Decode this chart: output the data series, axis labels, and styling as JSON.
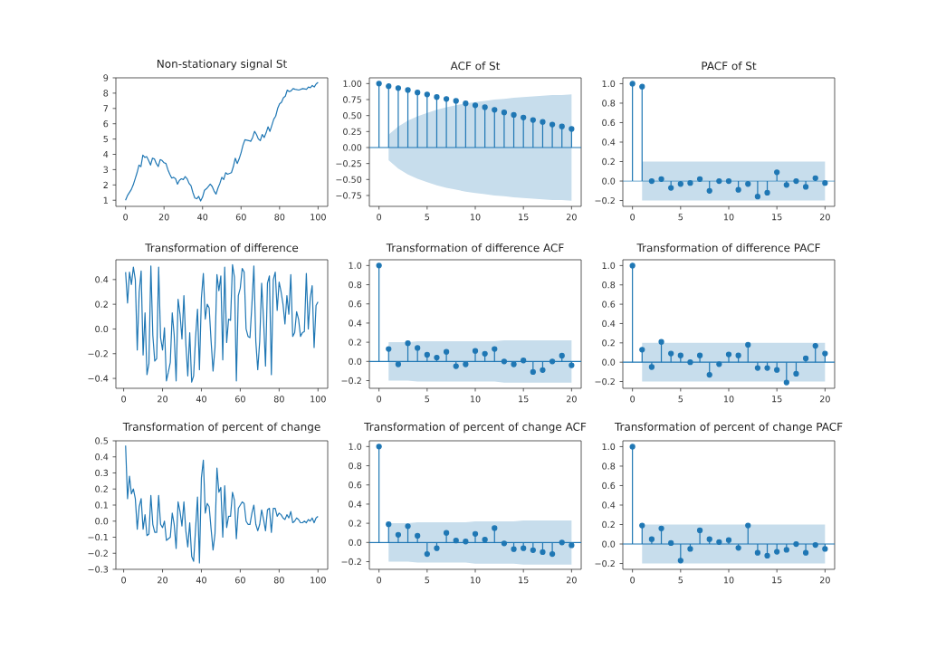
{
  "chart_data": [
    {
      "type": "line",
      "title": "Non-stationary signal St",
      "color": "#1f77b4",
      "x": [
        0,
        1,
        2,
        3,
        4,
        5,
        6,
        7,
        8,
        9,
        10,
        11,
        12,
        13,
        14,
        15,
        16,
        17,
        18,
        19,
        20,
        21,
        22,
        23,
        24,
        25,
        26,
        27,
        28,
        29,
        30,
        31,
        32,
        33,
        34,
        35,
        36,
        37,
        38,
        39,
        40,
        41,
        42,
        43,
        44,
        45,
        46,
        47,
        48,
        49,
        50,
        51,
        52,
        53,
        55,
        56,
        57,
        58,
        59,
        60,
        61,
        62,
        64,
        65,
        66,
        67,
        68,
        69,
        70,
        71,
        72,
        73,
        74,
        75,
        76,
        77,
        78,
        79,
        80,
        81,
        82,
        83,
        84,
        85,
        86,
        87,
        88,
        90,
        92,
        94,
        95,
        96,
        97,
        98,
        99,
        100
      ],
      "values": [
        1.0,
        1.3,
        1.5,
        1.7,
        2.0,
        2.4,
        2.8,
        3.3,
        3.2,
        3.95,
        3.8,
        3.85,
        3.6,
        3.3,
        3.75,
        3.7,
        3.4,
        3.2,
        3.65,
        3.6,
        3.45,
        3.4,
        3.0,
        2.7,
        2.45,
        2.5,
        2.4,
        2.05,
        2.3,
        2.4,
        2.35,
        2.55,
        2.4,
        2.1,
        1.95,
        1.5,
        1.15,
        1.1,
        1.25,
        0.95,
        1.2,
        1.65,
        1.75,
        1.9,
        2.05,
        1.9,
        1.6,
        1.4,
        1.8,
        2.1,
        2.5,
        2.35,
        2.8,
        2.7,
        2.8,
        3.2,
        3.75,
        3.4,
        3.7,
        4.1,
        4.6,
        4.95,
        4.9,
        4.85,
        5.1,
        5.5,
        5.3,
        5.0,
        4.9,
        5.3,
        5.1,
        5.4,
        5.8,
        5.5,
        5.9,
        6.3,
        6.5,
        7.0,
        7.3,
        7.4,
        7.7,
        7.8,
        8.2,
        8.1,
        8.15,
        8.3,
        8.25,
        8.2,
        8.3,
        8.25,
        8.4,
        8.35,
        8.5,
        8.4,
        8.6,
        8.7
      ],
      "xlim": [
        -5,
        105
      ],
      "ylim": [
        0.6,
        9
      ],
      "xticks": [
        0,
        20,
        40,
        60,
        80,
        100
      ],
      "yticks": [
        1,
        2,
        3,
        4,
        5,
        6,
        7,
        8,
        9
      ]
    },
    {
      "type": "lollipop",
      "title": "ACF of St",
      "marker": "circle",
      "xlim": [
        -1,
        21
      ],
      "ylim": [
        -0.92,
        1.09
      ],
      "xticks": [
        0,
        5,
        10,
        15,
        20
      ],
      "yticks": [
        {
          "value": -0.75,
          "label": "−0.75"
        },
        {
          "value": -0.5,
          "label": "−0.50"
        },
        {
          "value": -0.25,
          "label": "−0.25"
        },
        {
          "value": 0,
          "label": "0.00"
        },
        {
          "value": 0.25,
          "label": "0.25"
        },
        {
          "value": 0.5,
          "label": "0.50"
        },
        {
          "value": 0.75,
          "label": "0.75"
        },
        {
          "value": 1,
          "label": "1.00"
        }
      ],
      "ref_lines": [
        {
          "axis": "y",
          "value": 0,
          "color": "#1f77b4"
        }
      ],
      "series": [
        {
          "color": "#1f77b4",
          "lower": [
            null,
            -0.2,
            -0.33,
            -0.42,
            -0.49,
            -0.54,
            -0.59,
            -0.63,
            -0.66,
            -0.69,
            -0.71,
            -0.73,
            -0.75,
            -0.76,
            -0.78,
            -0.79,
            -0.8,
            -0.81,
            -0.82,
            -0.82,
            -0.83
          ],
          "upper": [
            null,
            0.2,
            0.33,
            0.42,
            0.49,
            0.54,
            0.59,
            0.63,
            0.66,
            0.69,
            0.71,
            0.73,
            0.75,
            0.76,
            0.78,
            0.79,
            0.8,
            0.81,
            0.82,
            0.82,
            0.83
          ],
          "x": [
            0,
            1,
            2,
            3,
            4,
            5,
            6,
            7,
            8,
            9,
            10,
            11,
            12,
            13,
            14,
            15,
            16,
            17,
            18,
            19,
            20
          ],
          "values": [
            1.0,
            0.96,
            0.93,
            0.9,
            0.86,
            0.83,
            0.79,
            0.76,
            0.73,
            0.69,
            0.66,
            0.63,
            0.59,
            0.55,
            0.51,
            0.47,
            0.43,
            0.4,
            0.36,
            0.33,
            0.29
          ]
        }
      ]
    },
    {
      "type": "lollipop",
      "title": "PACF of St",
      "marker": "circle",
      "xlim": [
        -1,
        21
      ],
      "ylim": [
        -0.26,
        1.06
      ],
      "xticks": [
        0,
        5,
        10,
        15,
        20
      ],
      "yticks": [
        {
          "value": -0.2,
          "label": "−0.2"
        },
        {
          "value": 0,
          "label": "0.0"
        },
        {
          "value": 0.2,
          "label": "0.2"
        },
        {
          "value": 0.4,
          "label": "0.4"
        },
        {
          "value": 0.6,
          "label": "0.6"
        },
        {
          "value": 0.8,
          "label": "0.8"
        },
        {
          "value": 1,
          "label": "1.0"
        }
      ],
      "ref_lines": [
        {
          "axis": "y",
          "value": 0,
          "color": "#1f77b4"
        }
      ],
      "series": [
        {
          "color": "#1f77b4",
          "lower": [
            null,
            -0.2,
            -0.2,
            -0.2,
            -0.2,
            -0.2,
            -0.2,
            -0.2,
            -0.2,
            -0.2,
            -0.2,
            -0.2,
            -0.2,
            -0.2,
            -0.2,
            -0.2,
            -0.2,
            -0.2,
            -0.2,
            -0.2,
            -0.2
          ],
          "upper": [
            null,
            0.2,
            0.2,
            0.2,
            0.2,
            0.2,
            0.2,
            0.2,
            0.2,
            0.2,
            0.2,
            0.2,
            0.2,
            0.2,
            0.2,
            0.2,
            0.2,
            0.2,
            0.2,
            0.2,
            0.2
          ],
          "x": [
            0,
            1,
            2,
            3,
            4,
            5,
            6,
            7,
            8,
            9,
            10,
            11,
            12,
            13,
            14,
            15,
            16,
            17,
            18,
            19,
            20
          ],
          "values": [
            1.0,
            0.97,
            0.0,
            0.02,
            -0.07,
            -0.03,
            -0.02,
            0.02,
            -0.1,
            0.0,
            0.0,
            -0.09,
            -0.03,
            -0.16,
            -0.12,
            0.09,
            -0.04,
            0.0,
            -0.06,
            0.03,
            -0.02
          ]
        }
      ]
    },
    {
      "type": "line",
      "title": "Transformation of difference",
      "color": "#1f77b4",
      "x": [
        1,
        2,
        3,
        4,
        5,
        6,
        7,
        8,
        9,
        10,
        11,
        12,
        13,
        14,
        15,
        16,
        17,
        18,
        19,
        20,
        21,
        22,
        23,
        24,
        25,
        26,
        27,
        28,
        29,
        30,
        31,
        32,
        33,
        34,
        35,
        36,
        37,
        38,
        39,
        40,
        41,
        42,
        43,
        44,
        45,
        46,
        47,
        48,
        49,
        50,
        51,
        52,
        53,
        54,
        55,
        56,
        57,
        58,
        59,
        60,
        61,
        62,
        63,
        64,
        65,
        66,
        67,
        68,
        69,
        70,
        71,
        72,
        73,
        74,
        75,
        76,
        77,
        78,
        79,
        80,
        81,
        82,
        83,
        84,
        85,
        86,
        87,
        88,
        89,
        90,
        91,
        92,
        93,
        94,
        95,
        96,
        97,
        98,
        99,
        100
      ],
      "values": [
        0.46,
        0.21,
        0.46,
        0.36,
        0.5,
        0.4,
        -0.17,
        0.3,
        0.47,
        -0.21,
        0.13,
        -0.37,
        -0.28,
        0.51,
        -0.05,
        -0.26,
        -0.24,
        0.5,
        -0.07,
        -0.17,
        0.01,
        -0.42,
        -0.35,
        -0.27,
        0.13,
        -0.05,
        -0.42,
        0.24,
        0.12,
        -0.08,
        0.27,
        -0.12,
        -0.38,
        -0.03,
        -0.43,
        -0.38,
        -0.07,
        0.16,
        -0.33,
        0.25,
        0.45,
        0.08,
        0.2,
        0.17,
        -0.1,
        -0.34,
        -0.15,
        0.44,
        0.31,
        0.43,
        -0.25,
        0.5,
        -0.11,
        0.08,
        0.07,
        0.52,
        0.42,
        -0.42,
        0.27,
        0.33,
        0.49,
        0.46,
        0.0,
        -0.06,
        -0.07,
        0.2,
        0.51,
        -0.1,
        -0.33,
        -0.1,
        0.37,
        0.07,
        -0.3,
        0.37,
        0.43,
        -0.37,
        0.4,
        0.46,
        0.15,
        0.38,
        0.3,
        0.2,
        0.04,
        0.27,
        0.12,
        0.44,
        -0.06,
        -0.03,
        0.14,
        0.08,
        -0.06,
        -0.03,
        -0.02,
        0.45,
        0.0,
        0.25,
        0.35,
        -0.15,
        0.19,
        0.22
      ],
      "xlim": [
        -4,
        105
      ],
      "ylim": [
        -0.48,
        0.56
      ],
      "xticks": [
        0,
        20,
        40,
        60,
        80,
        100
      ],
      "yticks": [
        {
          "value": -0.4,
          "label": "−0.4"
        },
        {
          "value": -0.2,
          "label": "−0.2"
        },
        {
          "value": 0,
          "label": "0.0"
        },
        {
          "value": 0.2,
          "label": "0.2"
        },
        {
          "value": 0.4,
          "label": "0.4"
        }
      ]
    },
    {
      "type": "lollipop",
      "title": "Transformation of difference ACF",
      "marker": "circle",
      "xlim": [
        -1,
        21
      ],
      "ylim": [
        -0.28,
        1.06
      ],
      "xticks": [
        0,
        5,
        10,
        15,
        20
      ],
      "yticks": [
        {
          "value": -0.2,
          "label": "−0.2"
        },
        {
          "value": 0,
          "label": "0.0"
        },
        {
          "value": 0.2,
          "label": "0.2"
        },
        {
          "value": 0.4,
          "label": "0.4"
        },
        {
          "value": 0.6,
          "label": "0.6"
        },
        {
          "value": 0.8,
          "label": "0.8"
        },
        {
          "value": 1,
          "label": "1.0"
        }
      ],
      "ref_lines": [
        {
          "axis": "y",
          "value": 0,
          "color": "#1f77b4"
        }
      ],
      "series": [
        {
          "color": "#1f77b4",
          "lower": [
            null,
            -0.2,
            -0.2,
            -0.2,
            -0.21,
            -0.21,
            -0.21,
            -0.21,
            -0.21,
            -0.21,
            -0.21,
            -0.21,
            -0.21,
            -0.22,
            -0.22,
            -0.22,
            -0.22,
            -0.22,
            -0.22,
            -0.22,
            -0.22
          ],
          "upper": [
            null,
            0.2,
            0.2,
            0.2,
            0.21,
            0.21,
            0.21,
            0.21,
            0.21,
            0.21,
            0.21,
            0.21,
            0.21,
            0.22,
            0.22,
            0.22,
            0.22,
            0.22,
            0.22,
            0.22,
            0.22
          ],
          "x": [
            0,
            1,
            2,
            3,
            4,
            5,
            6,
            7,
            8,
            9,
            10,
            11,
            12,
            13,
            14,
            15,
            16,
            17,
            18,
            19,
            20
          ],
          "values": [
            1.0,
            0.13,
            -0.03,
            0.19,
            0.14,
            0.07,
            0.04,
            0.1,
            -0.05,
            -0.03,
            0.11,
            0.08,
            0.13,
            0.0,
            -0.03,
            0.01,
            -0.11,
            -0.09,
            0.0,
            0.06,
            -0.04
          ]
        }
      ]
    },
    {
      "type": "lollipop",
      "title": "Transformation of difference PACF",
      "marker": "circle",
      "xlim": [
        -1,
        21
      ],
      "ylim": [
        -0.27,
        1.06
      ],
      "xticks": [
        0,
        5,
        10,
        15,
        20
      ],
      "yticks": [
        {
          "value": -0.2,
          "label": "−0.2"
        },
        {
          "value": 0,
          "label": "0.0"
        },
        {
          "value": 0.2,
          "label": "0.2"
        },
        {
          "value": 0.4,
          "label": "0.4"
        },
        {
          "value": 0.6,
          "label": "0.6"
        },
        {
          "value": 0.8,
          "label": "0.8"
        },
        {
          "value": 1,
          "label": "1.0"
        }
      ],
      "ref_lines": [
        {
          "axis": "y",
          "value": 0,
          "color": "#1f77b4"
        }
      ],
      "series": [
        {
          "color": "#1f77b4",
          "lower": [
            null,
            -0.2,
            -0.2,
            -0.2,
            -0.2,
            -0.2,
            -0.2,
            -0.2,
            -0.2,
            -0.2,
            -0.2,
            -0.2,
            -0.2,
            -0.2,
            -0.2,
            -0.2,
            -0.2,
            -0.2,
            -0.2,
            -0.2,
            -0.2
          ],
          "upper": [
            null,
            0.2,
            0.2,
            0.2,
            0.2,
            0.2,
            0.2,
            0.2,
            0.2,
            0.2,
            0.2,
            0.2,
            0.2,
            0.2,
            0.2,
            0.2,
            0.2,
            0.2,
            0.2,
            0.2,
            0.2
          ],
          "x": [
            0,
            1,
            2,
            3,
            4,
            5,
            6,
            7,
            8,
            9,
            10,
            11,
            12,
            13,
            14,
            15,
            16,
            17,
            18,
            19,
            20
          ],
          "values": [
            1.0,
            0.13,
            -0.05,
            0.21,
            0.09,
            0.07,
            0.0,
            0.07,
            -0.13,
            -0.02,
            0.08,
            0.07,
            0.18,
            -0.06,
            -0.06,
            -0.08,
            -0.21,
            -0.12,
            0.04,
            0.17,
            0.09
          ]
        }
      ]
    },
    {
      "type": "line",
      "title": "Transformation of percent of change",
      "color": "#1f77b4",
      "x": [
        1,
        2,
        3,
        4,
        5,
        6,
        7,
        8,
        9,
        10,
        11,
        12,
        13,
        14,
        15,
        16,
        17,
        18,
        19,
        20,
        21,
        22,
        23,
        24,
        25,
        26,
        27,
        28,
        29,
        30,
        31,
        32,
        33,
        34,
        35,
        36,
        37,
        38,
        39,
        40,
        41,
        42,
        43,
        44,
        45,
        46,
        47,
        48,
        49,
        50,
        51,
        52,
        53,
        54,
        55,
        56,
        57,
        58,
        59,
        60,
        61,
        62,
        63,
        64,
        65,
        66,
        67,
        68,
        69,
        70,
        71,
        72,
        73,
        74,
        75,
        76,
        77,
        78,
        79,
        80,
        81,
        82,
        83,
        84,
        85,
        86,
        87,
        88,
        89,
        90,
        91,
        92,
        93,
        94,
        95,
        96,
        97,
        98,
        99,
        100
      ],
      "values": [
        0.47,
        0.14,
        0.28,
        0.17,
        0.2,
        0.14,
        -0.05,
        0.09,
        0.14,
        -0.05,
        0.04,
        -0.09,
        -0.08,
        0.16,
        -0.02,
        -0.07,
        -0.07,
        0.16,
        -0.02,
        -0.04,
        0.0,
        -0.12,
        -0.11,
        -0.1,
        0.05,
        -0.02,
        -0.17,
        0.12,
        0.06,
        -0.03,
        0.12,
        -0.06,
        -0.16,
        -0.01,
        -0.22,
        -0.25,
        -0.05,
        0.15,
        -0.26,
        0.27,
        0.38,
        0.05,
        0.11,
        0.09,
        -0.05,
        -0.18,
        -0.08,
        0.33,
        0.18,
        0.21,
        -0.1,
        0.22,
        -0.04,
        0.03,
        0.03,
        0.18,
        0.13,
        -0.11,
        0.08,
        0.1,
        0.12,
        0.11,
        0.0,
        -0.02,
        -0.02,
        0.05,
        0.1,
        -0.02,
        -0.06,
        -0.02,
        0.07,
        0.01,
        -0.06,
        0.07,
        0.08,
        -0.07,
        0.08,
        0.08,
        0.03,
        0.05,
        0.04,
        0.02,
        0.01,
        0.04,
        0.02,
        0.06,
        -0.01,
        0.0,
        0.02,
        0.01,
        -0.01,
        -0.01,
        0.0,
        -0.01,
        0.01,
        0.0,
        0.02,
        -0.01,
        0.02,
        0.03
      ],
      "xlim": [
        -4,
        105
      ],
      "ylim": [
        -0.3,
        0.5
      ],
      "xticks": [
        0,
        20,
        40,
        60,
        80,
        100
      ],
      "yticks": [
        {
          "value": -0.3,
          "label": "−0.3"
        },
        {
          "value": -0.2,
          "label": "−0.2"
        },
        {
          "value": -0.1,
          "label": "−0.1"
        },
        {
          "value": 0,
          "label": "0.0"
        },
        {
          "value": 0.1,
          "label": "0.1"
        },
        {
          "value": 0.2,
          "label": "0.2"
        },
        {
          "value": 0.3,
          "label": "0.3"
        },
        {
          "value": 0.4,
          "label": "0.4"
        },
        {
          "value": 0.5,
          "label": "0.5"
        }
      ]
    },
    {
      "type": "lollipop",
      "title": "Transformation of percent of change ACF",
      "marker": "circle",
      "xlim": [
        -1,
        21
      ],
      "ylim": [
        -0.28,
        1.06
      ],
      "xticks": [
        0,
        5,
        10,
        15,
        20
      ],
      "yticks": [
        {
          "value": -0.2,
          "label": "−0.2"
        },
        {
          "value": 0,
          "label": "0.0"
        },
        {
          "value": 0.2,
          "label": "0.2"
        },
        {
          "value": 0.4,
          "label": "0.4"
        },
        {
          "value": 0.6,
          "label": "0.6"
        },
        {
          "value": 0.8,
          "label": "0.8"
        },
        {
          "value": 1,
          "label": "1.0"
        }
      ],
      "ref_lines": [
        {
          "axis": "y",
          "value": 0,
          "color": "#1f77b4"
        }
      ],
      "series": [
        {
          "color": "#1f77b4",
          "lower": [
            null,
            -0.2,
            -0.2,
            -0.2,
            -0.21,
            -0.21,
            -0.21,
            -0.21,
            -0.21,
            -0.21,
            -0.22,
            -0.22,
            -0.22,
            -0.22,
            -0.22,
            -0.23,
            -0.23,
            -0.23,
            -0.23,
            -0.23,
            -0.23
          ],
          "upper": [
            null,
            0.2,
            0.2,
            0.2,
            0.21,
            0.21,
            0.21,
            0.21,
            0.21,
            0.21,
            0.22,
            0.22,
            0.22,
            0.22,
            0.22,
            0.23,
            0.23,
            0.23,
            0.23,
            0.23,
            0.23
          ],
          "x": [
            0,
            1,
            2,
            3,
            4,
            5,
            6,
            7,
            8,
            9,
            10,
            11,
            12,
            13,
            14,
            15,
            16,
            17,
            18,
            19,
            20
          ],
          "values": [
            1.0,
            0.19,
            0.08,
            0.17,
            0.07,
            -0.12,
            -0.06,
            0.1,
            0.02,
            0.01,
            0.09,
            0.03,
            0.15,
            -0.01,
            -0.07,
            -0.06,
            -0.08,
            -0.1,
            -0.12,
            0.0,
            -0.03
          ]
        }
      ]
    },
    {
      "type": "lollipop",
      "title": "Transformation of percent of change PACF",
      "marker": "circle",
      "xlim": [
        -1,
        21
      ],
      "ylim": [
        -0.26,
        1.06
      ],
      "xticks": [
        0,
        5,
        10,
        15,
        20
      ],
      "yticks": [
        {
          "value": -0.2,
          "label": "−0.2"
        },
        {
          "value": 0,
          "label": "0.0"
        },
        {
          "value": 0.2,
          "label": "0.2"
        },
        {
          "value": 0.4,
          "label": "0.4"
        },
        {
          "value": 0.6,
          "label": "0.6"
        },
        {
          "value": 0.8,
          "label": "0.8"
        },
        {
          "value": 1,
          "label": "1.0"
        }
      ],
      "ref_lines": [
        {
          "axis": "y",
          "value": 0,
          "color": "#1f77b4"
        }
      ],
      "series": [
        {
          "color": "#1f77b4",
          "lower": [
            null,
            -0.2,
            -0.2,
            -0.2,
            -0.2,
            -0.2,
            -0.2,
            -0.2,
            -0.2,
            -0.2,
            -0.2,
            -0.2,
            -0.2,
            -0.2,
            -0.2,
            -0.2,
            -0.2,
            -0.2,
            -0.2,
            -0.2,
            -0.2
          ],
          "upper": [
            null,
            0.2,
            0.2,
            0.2,
            0.2,
            0.2,
            0.2,
            0.2,
            0.2,
            0.2,
            0.2,
            0.2,
            0.2,
            0.2,
            0.2,
            0.2,
            0.2,
            0.2,
            0.2,
            0.2,
            0.2
          ],
          "x": [
            0,
            1,
            2,
            3,
            4,
            5,
            6,
            7,
            8,
            9,
            10,
            11,
            12,
            13,
            14,
            15,
            16,
            17,
            18,
            19,
            20
          ],
          "values": [
            1.0,
            0.19,
            0.05,
            0.16,
            0.01,
            -0.17,
            -0.05,
            0.14,
            0.05,
            0.02,
            0.04,
            -0.04,
            0.19,
            -0.09,
            -0.12,
            -0.08,
            -0.06,
            0.0,
            -0.09,
            -0.01,
            -0.05
          ]
        }
      ]
    }
  ]
}
